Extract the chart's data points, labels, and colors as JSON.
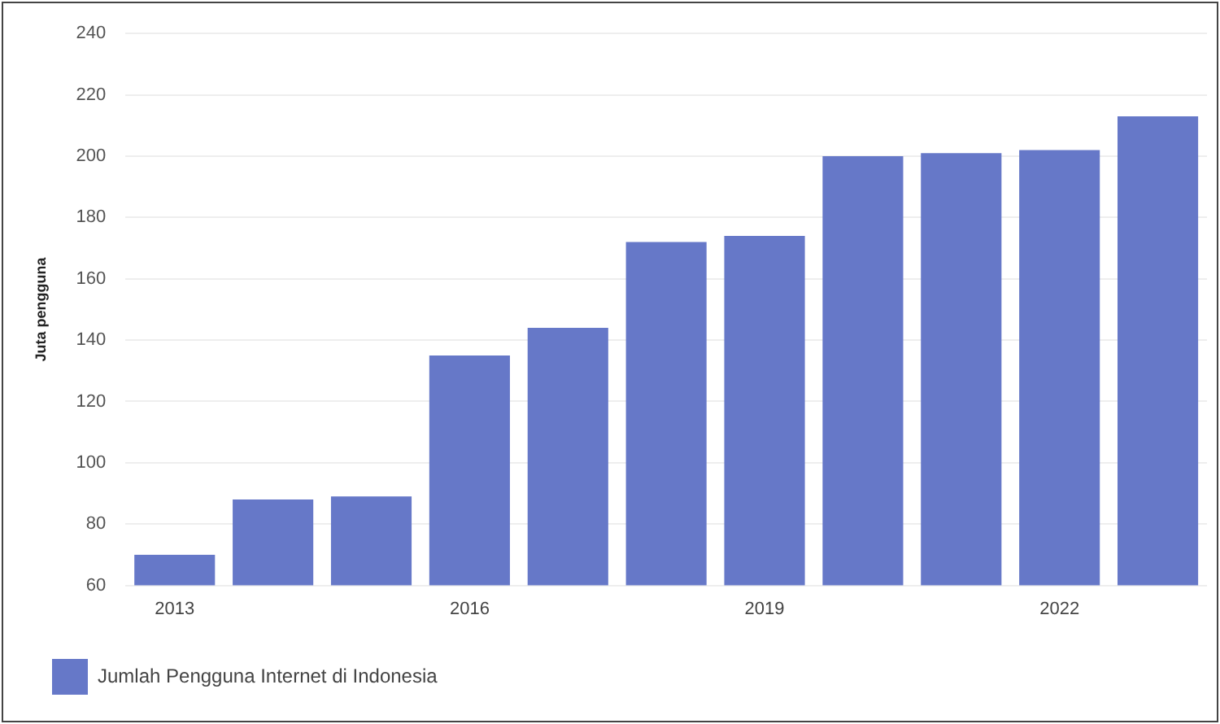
{
  "chart_data": {
    "type": "bar",
    "ylabel": "Juta pengguna",
    "categories": [
      "2013",
      null,
      null,
      "2016",
      null,
      null,
      "2019",
      null,
      null,
      "2022",
      null
    ],
    "series": [
      {
        "name": "Jumlah Pengguna Internet di Indonesia",
        "color": "#6678c8",
        "values": [
          70,
          88,
          89,
          135,
          144,
          172,
          174,
          200,
          201,
          202,
          213
        ]
      }
    ],
    "ylim": [
      60,
      240
    ],
    "yticks": [
      60,
      80,
      100,
      120,
      140,
      160,
      180,
      200,
      220,
      240
    ],
    "grid": "y",
    "legend": "bottom left"
  }
}
